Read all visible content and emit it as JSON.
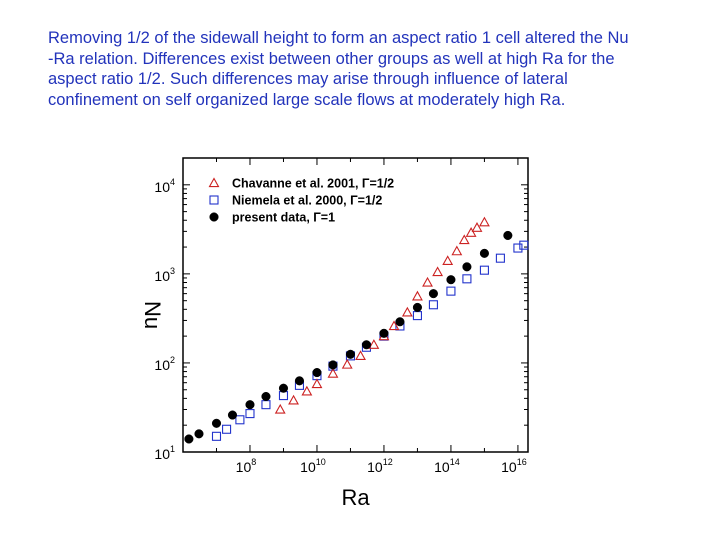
{
  "caption": {
    "line1": "Removing 1/2 of the sidewall height to form an aspect ratio 1 cell altered the Nu",
    "line2": "-Ra relation. Differences exist between other groups as well at high Ra for the",
    "line3": "aspect ratio 1/2. Such differences may arise through influence of lateral",
    "line4": "confinement on self organized large scale flows at moderately high Ra."
  },
  "chart_data": {
    "type": "scatter",
    "title": "",
    "xlabel": "Ra",
    "ylabel": "Nu",
    "xscale": "log",
    "yscale": "log",
    "xlim": [
      1000000.0,
      2e+16
    ],
    "ylim": [
      10,
      20000
    ],
    "x_ticks": [
      {
        "value": 100000000.0,
        "base": "10",
        "exp": "8"
      },
      {
        "value": 10000000000.0,
        "base": "10",
        "exp": "10"
      },
      {
        "value": 1000000000000.0,
        "base": "10",
        "exp": "12"
      },
      {
        "value": 100000000000000.0,
        "base": "10",
        "exp": "14"
      },
      {
        "value": 1e+16,
        "base": "10",
        "exp": "16"
      }
    ],
    "y_ticks": [
      {
        "value": 10,
        "base": "10",
        "exp": "1"
      },
      {
        "value": 100,
        "base": "10",
        "exp": "2"
      },
      {
        "value": 1000,
        "base": "10",
        "exp": "3"
      },
      {
        "value": 10000,
        "base": "10",
        "exp": "4"
      }
    ],
    "grid": false,
    "legend_position": "top-left",
    "series": [
      {
        "name": "Chavanne et al. 2001, Γ=1/2",
        "legend_text": "Chavanne et al. 2001, Γ=1/2",
        "marker": "open-triangle",
        "color": "#cc2222",
        "points": [
          [
            800000000.0,
            30
          ],
          [
            2000000000.0,
            38
          ],
          [
            5000000000.0,
            48
          ],
          [
            10000000000.0,
            58
          ],
          [
            30000000000.0,
            76
          ],
          [
            80000000000.0,
            96
          ],
          [
            200000000000.0,
            120
          ],
          [
            500000000000.0,
            160
          ],
          [
            1000000000000.0,
            200
          ],
          [
            2000000000000.0,
            260
          ],
          [
            5000000000000.0,
            370
          ],
          [
            10000000000000.0,
            560
          ],
          [
            20000000000000.0,
            800
          ],
          [
            40000000000000.0,
            1050
          ],
          [
            80000000000000.0,
            1400
          ],
          [
            150000000000000.0,
            1800
          ],
          [
            250000000000000.0,
            2400
          ],
          [
            400000000000000.0,
            2900
          ],
          [
            600000000000000.0,
            3300
          ],
          [
            1000000000000000.0,
            3800
          ]
        ]
      },
      {
        "name": "Niemela et al. 2000, Γ=1/2",
        "legend_text": "Niemela et al. 2000, Γ=1/2",
        "marker": "open-square",
        "color": "#2233cc",
        "points": [
          [
            10000000.0,
            15
          ],
          [
            20000000.0,
            18
          ],
          [
            50000000.0,
            23
          ],
          [
            100000000.0,
            27
          ],
          [
            300000000.0,
            34
          ],
          [
            1000000000.0,
            43
          ],
          [
            3000000000.0,
            56
          ],
          [
            10000000000.0,
            72
          ],
          [
            30000000000.0,
            92
          ],
          [
            100000000000.0,
            120
          ],
          [
            300000000000.0,
            150
          ],
          [
            1000000000000.0,
            200
          ],
          [
            3000000000000.0,
            260
          ],
          [
            10000000000000.0,
            340
          ],
          [
            30000000000000.0,
            450
          ],
          [
            100000000000000.0,
            640
          ],
          [
            300000000000000.0,
            880
          ],
          [
            1000000000000000.0,
            1100
          ],
          [
            3000000000000000.0,
            1500
          ],
          [
            1e+16,
            1950
          ],
          [
            1.5e+16,
            2100
          ]
        ]
      },
      {
        "name": "present data, Γ=1",
        "legend_text": "present data, Γ=1",
        "marker": "filled-circle",
        "color": "#000000",
        "points": [
          [
            1500000.0,
            14
          ],
          [
            3000000.0,
            16
          ],
          [
            10000000.0,
            21
          ],
          [
            30000000.0,
            26
          ],
          [
            100000000.0,
            34
          ],
          [
            300000000.0,
            42
          ],
          [
            1000000000.0,
            52
          ],
          [
            3000000000.0,
            63
          ],
          [
            10000000000.0,
            78
          ],
          [
            30000000000.0,
            95
          ],
          [
            100000000000.0,
            125
          ],
          [
            300000000000.0,
            160
          ],
          [
            1000000000000.0,
            215
          ],
          [
            3000000000000.0,
            290
          ],
          [
            10000000000000.0,
            420
          ],
          [
            30000000000000.0,
            600
          ],
          [
            100000000000000.0,
            860
          ],
          [
            300000000000000.0,
            1200
          ],
          [
            1000000000000000.0,
            1700
          ],
          [
            5000000000000000.0,
            2700
          ]
        ]
      }
    ]
  }
}
